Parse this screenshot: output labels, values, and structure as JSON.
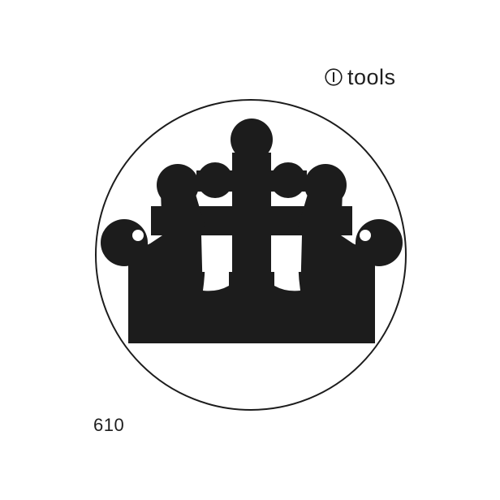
{
  "brand": {
    "name": "tools",
    "icon": "circled-i-logo-icon"
  },
  "emblem": {
    "icon": "crown-emblem-icon",
    "fill_color": "#1c1c1c",
    "ring_color": "#1c1c1c"
  },
  "catalog": {
    "number": "610"
  }
}
